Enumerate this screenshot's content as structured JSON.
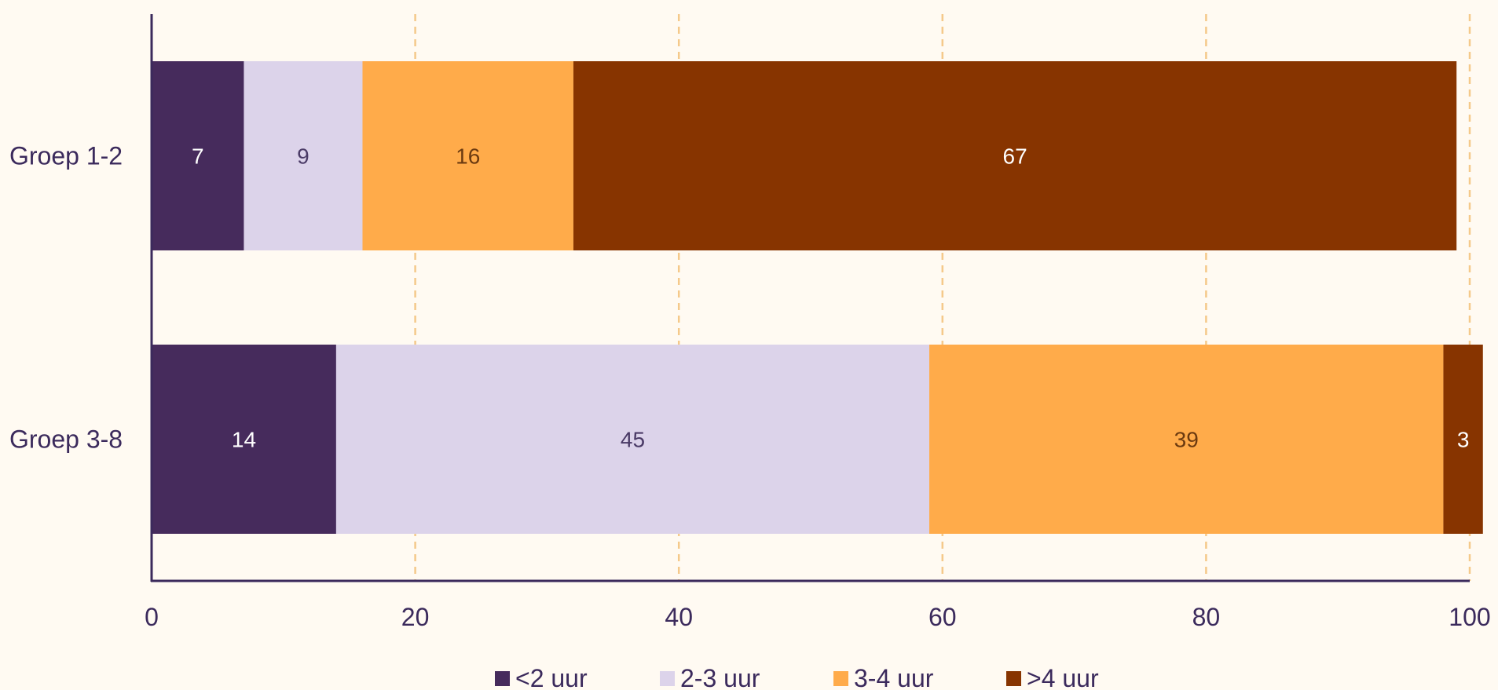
{
  "chart_data": {
    "type": "bar",
    "orientation": "horizontal",
    "stacked": true,
    "categories": [
      "Groep 1-2",
      "Groep 3-8"
    ],
    "series": [
      {
        "name": "<2 uur",
        "values": [
          7,
          14
        ],
        "color": "#462b5c",
        "label_color": "#ffffff"
      },
      {
        "name": "2-3 uur",
        "values": [
          9,
          45
        ],
        "color": "#dcd3ea",
        "label_color": "#4a3a66"
      },
      {
        "name": "3-4 uur",
        "values": [
          16,
          39
        ],
        "color": "#ffab4a",
        "label_color": "#6b3a10"
      },
      {
        "name": ">4 uur",
        "values": [
          67,
          3
        ],
        "color": "#873400",
        "label_color": "#ffffff"
      }
    ],
    "xlim": [
      0,
      100
    ],
    "xticks": [
      0,
      20,
      40,
      60,
      80,
      100
    ],
    "grid": true,
    "grid_color": "#f5c98a",
    "axis_color": "#3b2a5c",
    "legend_position": "bottom-center"
  }
}
